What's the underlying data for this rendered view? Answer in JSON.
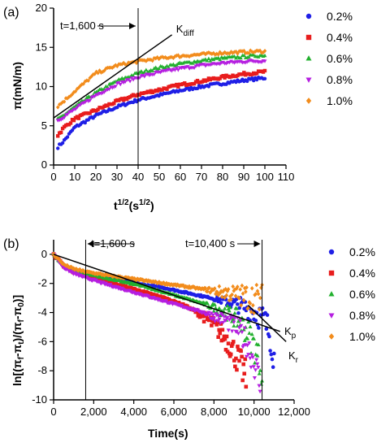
{
  "colors": {
    "0.2%": "#1f1fe6",
    "0.4%": "#e81d1d",
    "0.6%": "#22b02e",
    "0.8%": "#b51ee0",
    "1.0%": "#f28c1c"
  },
  "chart_data": [
    {
      "panel_label": "(a)",
      "type": "scatter",
      "xlabel": "t",
      "xlabel_sup": "1/2",
      "xlabel_tail": "(s",
      "xlabel_sup2": "1/2",
      "xlabel_close": ")",
      "ylabel": "π(mN/m)",
      "xlim": [
        0,
        110
      ],
      "ylim": [
        0,
        20
      ],
      "xticks": [
        "0",
        "10",
        "20",
        "30",
        "40",
        "50",
        "60",
        "70",
        "80",
        "90",
        "100",
        "110"
      ],
      "yticks": [
        "0",
        "5",
        "10",
        "15",
        "20"
      ],
      "legend": [
        "0.2%",
        "0.4%",
        "0.6%",
        "0.8%",
        "1.0%"
      ],
      "legend_markers": [
        "circle",
        "square",
        "triangle-up",
        "triangle-down",
        "diamond"
      ],
      "annotations": {
        "arrow_label": "t=1,600 s",
        "kdiff": "K",
        "kdiff_sub": "diff"
      },
      "vline_x": 40,
      "tangent_line": {
        "x": [
          0,
          56
        ],
        "y": [
          6.0,
          16.6
        ]
      },
      "series": [
        {
          "name": "0.2%",
          "x": [
            2,
            5,
            10,
            20,
            30,
            40,
            50,
            60,
            70,
            80,
            90,
            100
          ],
          "y": [
            2.3,
            3.1,
            4.8,
            6.3,
            7.4,
            8.3,
            8.9,
            9.5,
            10.0,
            10.4,
            10.8,
            11.1
          ]
        },
        {
          "name": "0.4%",
          "x": [
            2,
            5,
            10,
            20,
            30,
            40,
            50,
            60,
            70,
            80,
            90,
            100
          ],
          "y": [
            3.8,
            4.8,
            5.9,
            7.0,
            8.1,
            9.0,
            9.6,
            10.2,
            10.7,
            11.2,
            11.6,
            11.9
          ]
        },
        {
          "name": "0.6%",
          "x": [
            2,
            5,
            10,
            20,
            30,
            40,
            50,
            60,
            70,
            80,
            90,
            100
          ],
          "y": [
            5.8,
            6.4,
            7.4,
            9.2,
            10.7,
            11.7,
            12.4,
            12.9,
            13.3,
            13.6,
            13.8,
            14.0
          ]
        },
        {
          "name": "0.8%",
          "x": [
            2,
            5,
            10,
            20,
            30,
            40,
            50,
            60,
            70,
            80,
            90,
            100
          ],
          "y": [
            5.7,
            6.2,
            7.1,
            8.9,
            10.3,
            11.2,
            11.8,
            12.3,
            12.7,
            13.0,
            13.2,
            13.3
          ]
        },
        {
          "name": "1.0%",
          "x": [
            2,
            5,
            10,
            20,
            30,
            40,
            50,
            60,
            70,
            80,
            90,
            100
          ],
          "y": [
            7.5,
            8.2,
            9.4,
            11.7,
            12.7,
            13.2,
            13.6,
            13.9,
            14.1,
            14.3,
            14.4,
            14.5
          ]
        }
      ]
    },
    {
      "panel_label": "(b)",
      "type": "scatter",
      "xlabel": "Time(s)",
      "ylabel": "ln[(π_f-π_t)/(π_f-π_0)]",
      "xlim": [
        0,
        12000
      ],
      "ylim": [
        -10,
        1
      ],
      "xticks": [
        "0",
        "2,000",
        "4,000",
        "6,000",
        "8,000",
        "10,000",
        "12,000"
      ],
      "yticks": [
        "0",
        "-2",
        "-4",
        "-6",
        "-8",
        "-10"
      ],
      "legend": [
        "0.2%",
        "0.4%",
        "0.6%",
        "0.8%",
        "1.0%"
      ],
      "legend_markers": [
        "circle",
        "square",
        "triangle-up",
        "triangle-down",
        "diamond"
      ],
      "annotations": {
        "arrow1_label": "t=1,600 s",
        "arrow2_label": "t=10,400 s",
        "kp": "K",
        "kp_sub": "p",
        "kr": "K",
        "kr_sub": "r"
      },
      "vlines_x": [
        1600,
        10400
      ],
      "kp_line": {
        "x": [
          0,
          11300
        ],
        "y": [
          0.0,
          -5.3
        ]
      },
      "kr_line": {
        "x": [
          9700,
          11600
        ],
        "y": [
          -3.5,
          -6.0
        ]
      },
      "series": [
        {
          "name": "0.2%",
          "x": [
            0,
            500,
            1000,
            1600,
            2500,
            3500,
            4500,
            5500,
            6500,
            7500,
            8500,
            9500,
            10000,
            10500,
            10800,
            11000
          ],
          "y": [
            0,
            -0.8,
            -1.1,
            -1.3,
            -1.6,
            -1.8,
            -2.1,
            -2.3,
            -2.6,
            -2.9,
            -3.2,
            -3.6,
            -3.9,
            -4.5,
            -5.5,
            -7.0
          ]
        },
        {
          "name": "0.4%",
          "x": [
            0,
            500,
            1000,
            1600,
            2500,
            3500,
            4500,
            5500,
            6500,
            7200,
            7800,
            8300,
            8800,
            9200,
            9600
          ],
          "y": [
            0,
            -0.8,
            -1.2,
            -1.4,
            -1.8,
            -2.2,
            -2.6,
            -3.0,
            -3.5,
            -4.0,
            -4.6,
            -5.3,
            -6.2,
            -7.2,
            -8.5
          ]
        },
        {
          "name": "0.6%",
          "x": [
            0,
            500,
            1000,
            1600,
            2500,
            3500,
            4500,
            5500,
            6500,
            7500,
            8500,
            9200,
            9700,
            10100,
            10400
          ],
          "y": [
            0,
            -0.8,
            -1.1,
            -1.3,
            -1.6,
            -1.9,
            -2.2,
            -2.6,
            -3.0,
            -3.4,
            -3.9,
            -4.5,
            -5.4,
            -6.6,
            -8.0
          ]
        },
        {
          "name": "0.8%",
          "x": [
            0,
            500,
            1000,
            1600,
            2500,
            3500,
            4500,
            5500,
            6500,
            7500,
            8500,
            9200,
            9600,
            10000,
            10300
          ],
          "y": [
            0,
            -0.9,
            -1.3,
            -1.6,
            -2.0,
            -2.4,
            -2.8,
            -3.2,
            -3.6,
            -4.0,
            -4.5,
            -5.1,
            -6.0,
            -7.3,
            -9.0
          ]
        },
        {
          "name": "1.0%",
          "x": [
            0,
            500,
            1000,
            1600,
            2500,
            3500,
            4500,
            5500,
            6500,
            7500,
            8500,
            9500,
            10000,
            10400
          ],
          "y": [
            0,
            -0.7,
            -1.0,
            -1.2,
            -1.4,
            -1.6,
            -1.8,
            -2.0,
            -2.2,
            -2.4,
            -2.6,
            -2.9,
            -3.0,
            -3.2
          ]
        }
      ]
    }
  ]
}
